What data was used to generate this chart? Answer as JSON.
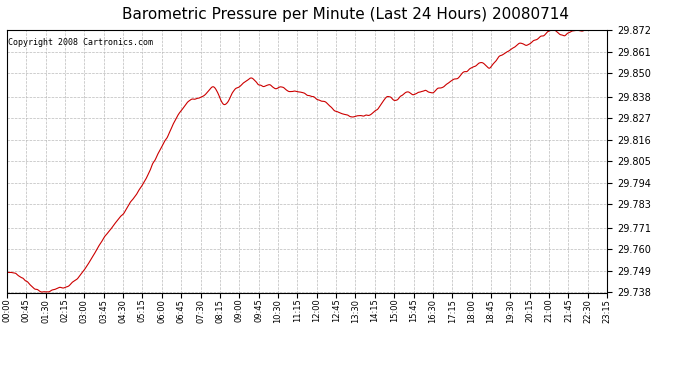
{
  "title": "Barometric Pressure per Minute (Last 24 Hours) 20080714",
  "copyright": "Copyright 2008 Cartronics.com",
  "line_color": "#cc0000",
  "background_color": "#ffffff",
  "plot_background": "#ffffff",
  "grid_color": "#bbbbbb",
  "yticks": [
    29.738,
    29.749,
    29.76,
    29.771,
    29.783,
    29.794,
    29.805,
    29.816,
    29.827,
    29.838,
    29.85,
    29.861,
    29.872
  ],
  "ylim": [
    29.738,
    29.872
  ],
  "xtick_labels": [
    "00:00",
    "00:45",
    "01:30",
    "02:15",
    "03:00",
    "03:45",
    "04:30",
    "05:15",
    "06:00",
    "06:45",
    "07:30",
    "08:15",
    "09:00",
    "09:45",
    "10:30",
    "11:15",
    "12:00",
    "12:45",
    "13:30",
    "14:15",
    "15:00",
    "15:45",
    "16:30",
    "17:15",
    "18:00",
    "18:45",
    "19:30",
    "20:15",
    "21:00",
    "21:45",
    "22:30",
    "23:15"
  ],
  "title_fontsize": 11,
  "copyright_fontsize": 6,
  "tick_fontsize": 6,
  "ytick_fontsize": 7,
  "line_width": 0.8,
  "key_points": [
    [
      0,
      29.748
    ],
    [
      45,
      29.744
    ],
    [
      90,
      29.738
    ],
    [
      120,
      29.74
    ],
    [
      150,
      29.742
    ],
    [
      180,
      29.748
    ],
    [
      210,
      29.758
    ],
    [
      240,
      29.768
    ],
    [
      270,
      29.776
    ],
    [
      300,
      29.785
    ],
    [
      330,
      29.795
    ],
    [
      360,
      29.808
    ],
    [
      390,
      29.82
    ],
    [
      420,
      29.832
    ],
    [
      450,
      29.837
    ],
    [
      480,
      29.84
    ],
    [
      495,
      29.843
    ],
    [
      510,
      29.838
    ],
    [
      525,
      29.834
    ],
    [
      540,
      29.84
    ],
    [
      555,
      29.843
    ],
    [
      570,
      29.845
    ],
    [
      585,
      29.847
    ],
    [
      600,
      29.845
    ],
    [
      615,
      29.843
    ],
    [
      630,
      29.844
    ],
    [
      645,
      29.842
    ],
    [
      660,
      29.843
    ],
    [
      675,
      29.841
    ],
    [
      690,
      29.841
    ],
    [
      705,
      29.84
    ],
    [
      720,
      29.839
    ],
    [
      735,
      29.838
    ],
    [
      750,
      29.836
    ],
    [
      765,
      29.835
    ],
    [
      780,
      29.832
    ],
    [
      795,
      29.83
    ],
    [
      810,
      29.829
    ],
    [
      825,
      29.828
    ],
    [
      840,
      29.828
    ],
    [
      855,
      29.828
    ],
    [
      870,
      29.829
    ],
    [
      885,
      29.831
    ],
    [
      900,
      29.835
    ],
    [
      915,
      29.838
    ],
    [
      930,
      29.836
    ],
    [
      945,
      29.838
    ],
    [
      960,
      29.84
    ],
    [
      975,
      29.839
    ],
    [
      990,
      29.84
    ],
    [
      1005,
      29.841
    ],
    [
      1020,
      29.84
    ],
    [
      1035,
      29.842
    ],
    [
      1050,
      29.844
    ],
    [
      1065,
      29.846
    ],
    [
      1080,
      29.848
    ],
    [
      1095,
      29.85
    ],
    [
      1110,
      29.852
    ],
    [
      1125,
      29.854
    ],
    [
      1140,
      29.855
    ],
    [
      1155,
      29.853
    ],
    [
      1170,
      29.856
    ],
    [
      1185,
      29.859
    ],
    [
      1200,
      29.861
    ],
    [
      1215,
      29.863
    ],
    [
      1230,
      29.865
    ],
    [
      1245,
      29.864
    ],
    [
      1260,
      29.866
    ],
    [
      1275,
      29.868
    ],
    [
      1290,
      29.87
    ],
    [
      1305,
      29.872
    ],
    [
      1320,
      29.871
    ],
    [
      1335,
      29.869
    ],
    [
      1350,
      29.871
    ],
    [
      1365,
      29.872
    ],
    [
      1380,
      29.872
    ],
    [
      1395,
      29.873
    ],
    [
      1410,
      29.872
    ],
    [
      1425,
      29.872
    ],
    [
      1439,
      29.872
    ]
  ]
}
